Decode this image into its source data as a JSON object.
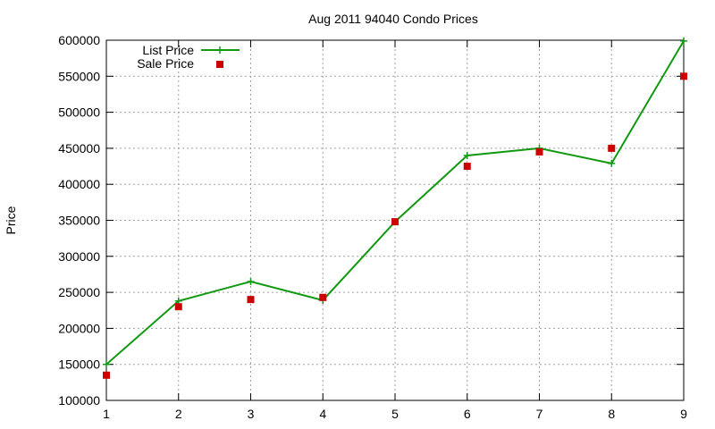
{
  "colors": {
    "list": "#119911",
    "sale": "#cc0000",
    "grid": "#a0a0a0",
    "axis": "#000000"
  },
  "chart_data": {
    "type": "line",
    "title": "Aug 2011 94040 Condo Prices",
    "xlabel": "",
    "ylabel": "Price",
    "xlim": [
      1,
      9
    ],
    "ylim": [
      100000,
      600000
    ],
    "x_ticks": [
      1,
      2,
      3,
      4,
      5,
      6,
      7,
      8,
      9
    ],
    "y_ticks": [
      100000,
      150000,
      200000,
      250000,
      300000,
      350000,
      400000,
      450000,
      500000,
      550000,
      600000
    ],
    "grid": true,
    "legend_position": "top-left",
    "x": [
      1,
      2,
      3,
      4,
      5,
      6,
      7,
      8,
      9
    ],
    "series": [
      {
        "name": "List Price",
        "style": "line-plus",
        "values": [
          150000,
          238000,
          265000,
          239000,
          348000,
          440000,
          450000,
          429000,
          599000
        ]
      },
      {
        "name": "Sale Price",
        "style": "square-points",
        "values": [
          135000,
          230000,
          240000,
          243000,
          348000,
          425000,
          445000,
          450000,
          550000
        ]
      }
    ]
  }
}
